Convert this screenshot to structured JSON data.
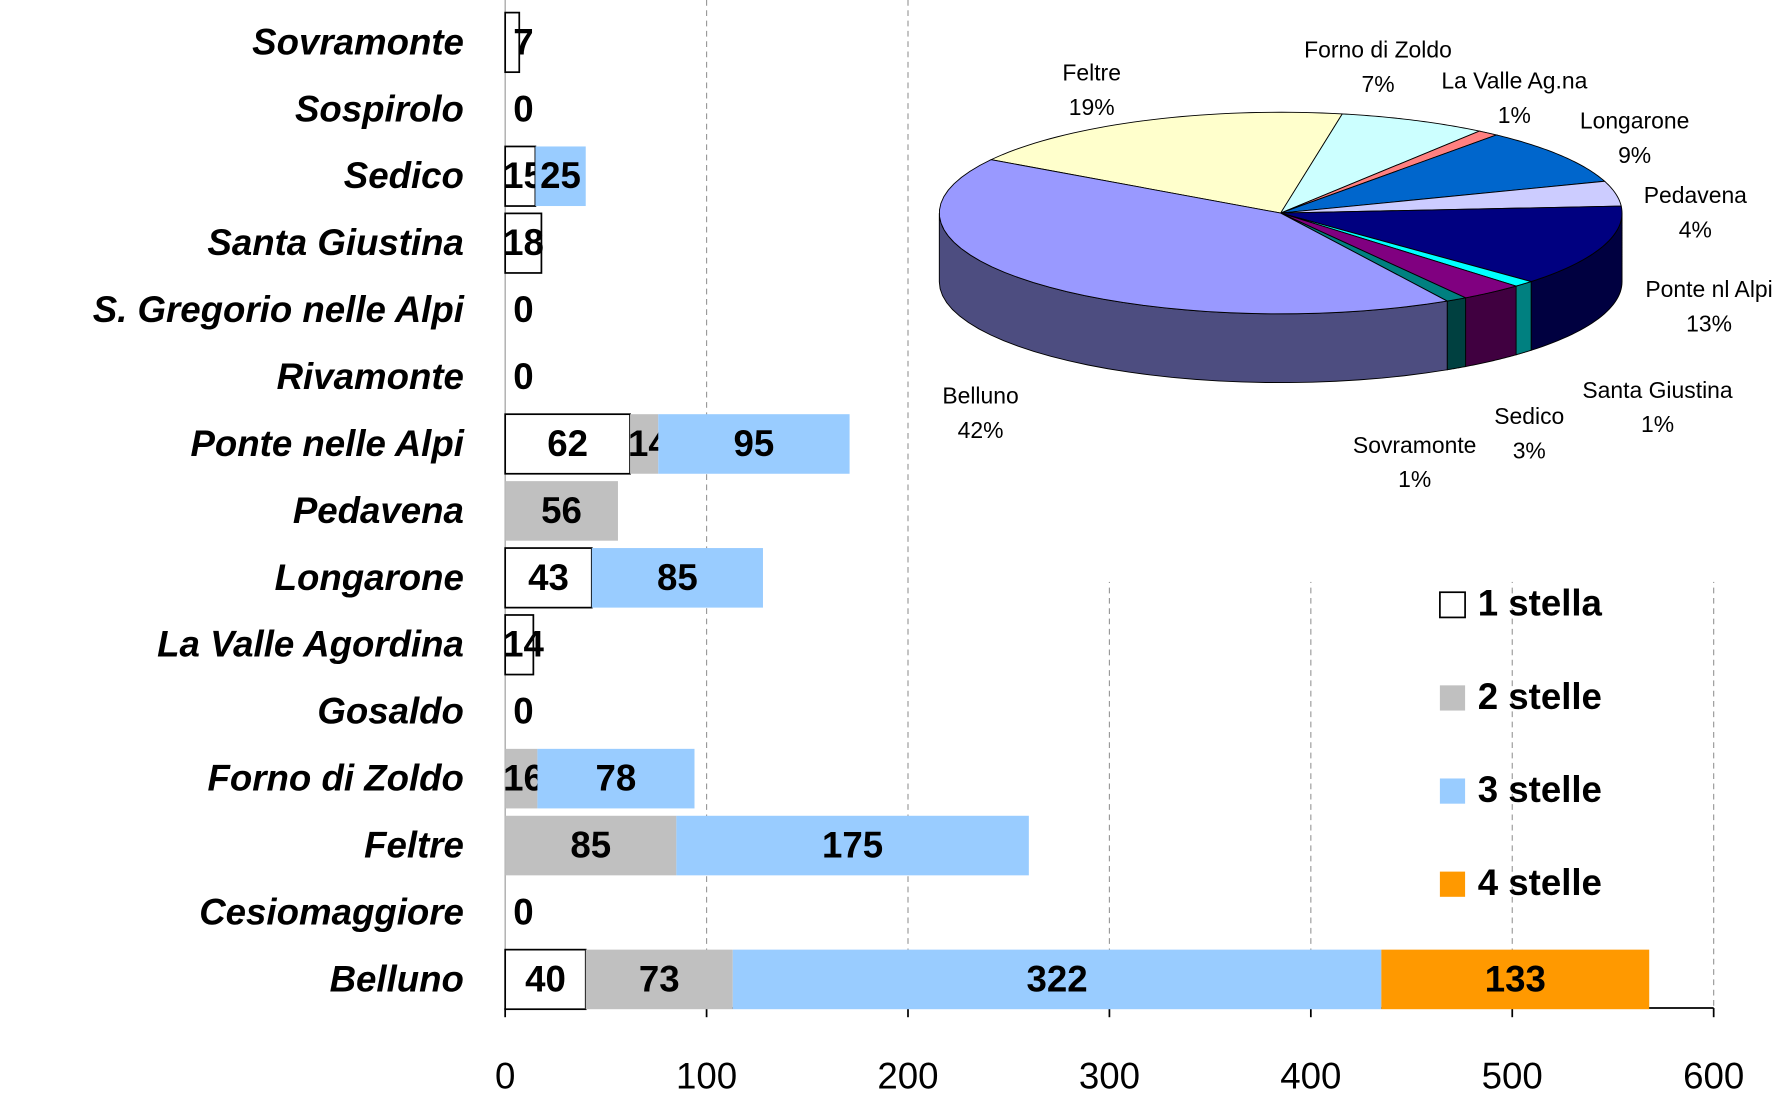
{
  "chart_data": [
    {
      "type": "bar",
      "orientation": "horizontal",
      "stacked": true,
      "categories": [
        "Sovramonte",
        "Sospirolo",
        "Sedico",
        "Santa Giustina",
        "S. Gregorio nelle Alpi",
        "Rivamonte",
        "Ponte nelle Alpi",
        "Pedavena",
        "Longarone",
        "La Valle Agordina",
        "Gosaldo",
        "Forno di Zoldo",
        "Feltre",
        "Cesiomaggiore",
        "Belluno"
      ],
      "series": [
        {
          "name": "1 stella",
          "color": "#ffffff",
          "values": [
            7,
            0,
            15,
            18,
            0,
            0,
            62,
            null,
            43,
            14,
            0,
            null,
            null,
            0,
            40
          ]
        },
        {
          "name": "2 stelle",
          "color": "#c0c0c0",
          "values": [
            null,
            null,
            null,
            null,
            null,
            null,
            14,
            56,
            null,
            null,
            null,
            16,
            85,
            null,
            73
          ]
        },
        {
          "name": "3 stelle",
          "color": "#99ccff",
          "values": [
            null,
            null,
            25,
            null,
            null,
            null,
            95,
            null,
            85,
            null,
            null,
            78,
            175,
            null,
            322
          ]
        },
        {
          "name": "4 stelle",
          "color": "#ff9900",
          "values": [
            null,
            null,
            null,
            null,
            null,
            null,
            null,
            null,
            null,
            null,
            null,
            null,
            null,
            null,
            133
          ]
        }
      ],
      "xlim": [
        0,
        600
      ],
      "xticks": [
        0,
        100,
        200,
        300,
        400,
        500,
        600
      ],
      "grid": true,
      "legend": "right"
    },
    {
      "type": "pie",
      "style": "3d",
      "categories": [
        "Feltre",
        "Forno di Zoldo",
        "La Valle Ag.na",
        "Longarone",
        "Pedavena",
        "Ponte nl Alpi",
        "Santa Giustina",
        "Sedico",
        "Sovramonte",
        "Belluno"
      ],
      "values": [
        19,
        7,
        1,
        9,
        4,
        13,
        1,
        3,
        1,
        42
      ],
      "value_labels": [
        "19%",
        "7%",
        "1%",
        "9%",
        "4%",
        "13%",
        "1%",
        "3%",
        "1%",
        "42%"
      ],
      "colors": [
        "#ffffcc",
        "#ccffff",
        "#ff8080",
        "#0066cc",
        "#ccccff",
        "#000080",
        "#00ffff",
        "#800080",
        "#008080",
        "#9999ff"
      ]
    }
  ]
}
